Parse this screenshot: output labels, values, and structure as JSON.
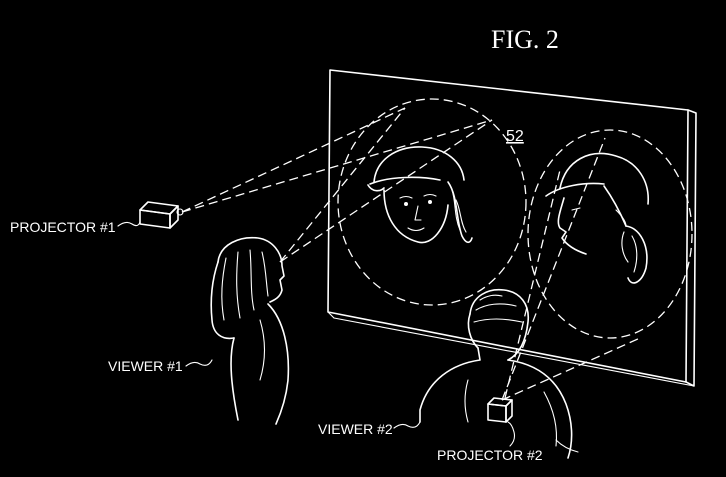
{
  "figure": {
    "title": "FIG. 2",
    "screen_ref": "52"
  },
  "labels": {
    "projector1": "PROJECTOR #1",
    "projector2": "PROJECTOR #2",
    "viewer1": "VIEWER #1",
    "viewer2": "VIEWER #2"
  },
  "colors": {
    "background": "#000000",
    "ink": "#ffffff"
  }
}
